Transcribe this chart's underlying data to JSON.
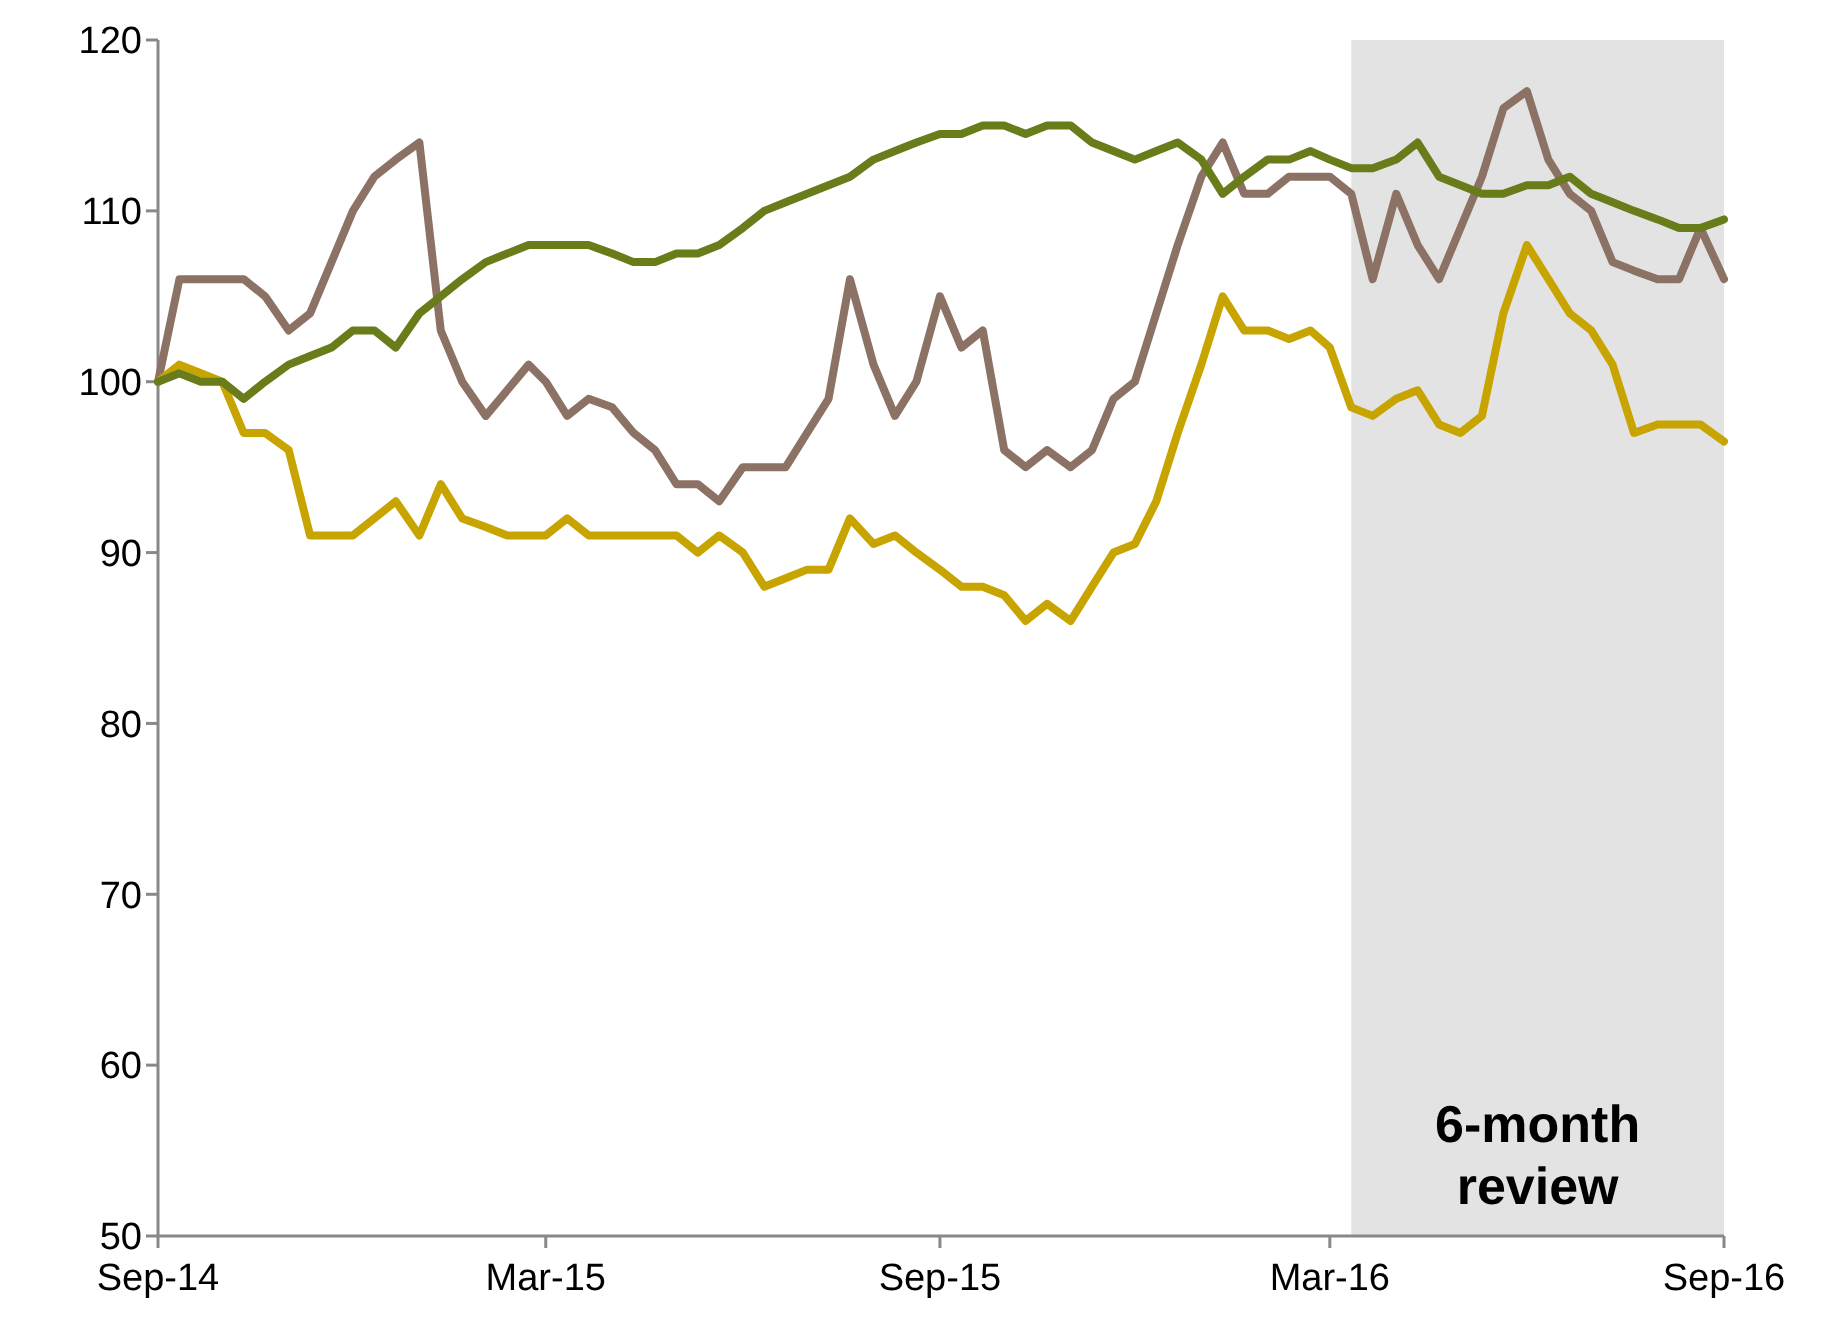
{
  "chart_data": {
    "type": "line",
    "x": [
      "2014-09-01",
      "2014-09-11",
      "2014-09-21",
      "2014-10-01",
      "2014-10-11",
      "2014-10-21",
      "2014-11-01",
      "2014-11-11",
      "2014-11-21",
      "2014-12-01",
      "2014-12-11",
      "2014-12-21",
      "2015-01-01",
      "2015-01-11",
      "2015-01-21",
      "2015-02-01",
      "2015-02-11",
      "2015-02-21",
      "2015-03-01",
      "2015-03-11",
      "2015-03-21",
      "2015-04-01",
      "2015-04-11",
      "2015-04-21",
      "2015-05-01",
      "2015-05-11",
      "2015-05-21",
      "2015-06-01",
      "2015-06-11",
      "2015-06-21",
      "2015-07-01",
      "2015-07-11",
      "2015-07-21",
      "2015-08-01",
      "2015-08-11",
      "2015-08-21",
      "2015-09-01",
      "2015-09-11",
      "2015-09-21",
      "2015-10-01",
      "2015-10-11",
      "2015-10-21",
      "2015-11-01",
      "2015-11-11",
      "2015-11-21",
      "2015-12-01",
      "2015-12-11",
      "2015-12-21",
      "2016-01-01",
      "2016-01-11",
      "2016-01-21",
      "2016-02-01",
      "2016-02-11",
      "2016-02-21",
      "2016-03-01",
      "2016-03-11",
      "2016-03-21",
      "2016-04-01",
      "2016-04-11",
      "2016-04-21",
      "2016-05-01",
      "2016-05-11",
      "2016-05-21",
      "2016-06-01",
      "2016-06-11",
      "2016-06-21",
      "2016-07-01",
      "2016-07-11",
      "2016-07-21",
      "2016-08-01",
      "2016-08-11",
      "2016-08-21",
      "2016-09-01"
    ],
    "series": [
      {
        "color": "#8b7264",
        "values": [
          100,
          106,
          106,
          106,
          106,
          105,
          103,
          104,
          107,
          110,
          112,
          113,
          114,
          103,
          100,
          98,
          99.5,
          101,
          100,
          98,
          99,
          98.5,
          97,
          96,
          94,
          94,
          93,
          95,
          95,
          95,
          97,
          99,
          106,
          101,
          98,
          100,
          105,
          102,
          103,
          96,
          95,
          96,
          95,
          96,
          99,
          100,
          104,
          108,
          112,
          114,
          111,
          111,
          112,
          112,
          112,
          111,
          106,
          111,
          108,
          106,
          109,
          112,
          116,
          117,
          113,
          111,
          110,
          107,
          106.5,
          106,
          106,
          109,
          106
        ]
      },
      {
        "color": "#c8a400",
        "values": [
          100,
          101,
          100.5,
          100,
          97,
          97,
          96,
          91,
          91,
          91,
          92,
          93,
          91,
          94,
          92,
          91.5,
          91,
          91,
          91,
          92,
          91,
          91,
          91,
          91,
          91,
          90,
          91,
          90,
          88,
          88.5,
          89,
          89,
          92,
          90.5,
          91,
          90,
          89,
          88,
          88,
          87.5,
          86,
          87,
          86,
          88,
          90,
          90.5,
          93,
          97,
          101,
          105,
          103,
          103,
          102.5,
          103,
          102,
          98.5,
          98,
          99,
          99.5,
          97.5,
          97,
          98,
          104,
          108,
          106,
          104,
          103,
          101,
          97,
          97.5,
          97.5,
          97.5,
          96.5
        ]
      },
      {
        "color": "#687c19",
        "values": [
          100,
          100.5,
          100,
          100,
          99,
          100,
          101,
          101.5,
          102,
          103,
          103,
          102,
          104,
          105,
          106,
          107,
          107.5,
          108,
          108,
          108,
          108,
          107.5,
          107,
          107,
          107.5,
          107.5,
          108,
          109,
          110,
          110.5,
          111,
          111.5,
          112,
          113,
          113.5,
          114,
          114.5,
          114.5,
          115,
          115,
          114.5,
          115,
          115,
          114,
          113.5,
          113,
          113.5,
          114,
          113,
          111,
          112,
          113,
          113,
          113.5,
          113,
          112.5,
          112.5,
          113,
          114,
          112,
          111.5,
          111,
          111,
          111.5,
          111.5,
          112,
          111,
          110.5,
          110,
          109.5,
          109,
          109,
          109.5
        ]
      }
    ],
    "xlim": [
      "2014-09-01",
      "2016-09-01"
    ],
    "xticks": [
      {
        "value": "2014-09-01",
        "label": "Sep-14"
      },
      {
        "value": "2015-03-01",
        "label": "Mar-15"
      },
      {
        "value": "2015-09-01",
        "label": "Sep-15"
      },
      {
        "value": "2016-03-01",
        "label": "Mar-16"
      },
      {
        "value": "2016-09-01",
        "label": "Sep-16"
      }
    ],
    "ylim": [
      50,
      120
    ],
    "yticks": [
      50,
      60,
      70,
      80,
      90,
      100,
      110,
      120
    ],
    "bands": [
      {
        "axis": "x",
        "from": "2016-03-11",
        "to": "2016-09-01",
        "label": "6-month review",
        "color": "#e3e3e3"
      }
    ],
    "marker": "none",
    "line_style": "solid"
  }
}
